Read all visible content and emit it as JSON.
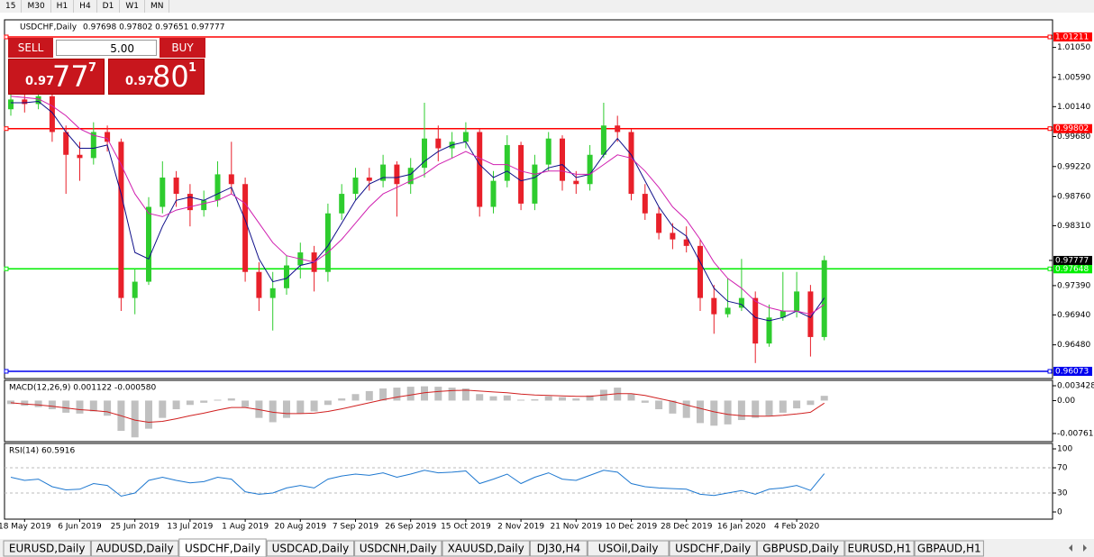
{
  "toolbar": [
    "15",
    "M30",
    "H1",
    "H4",
    "D1",
    "W1",
    "MN"
  ],
  "trade_panel": {
    "sell": "SELL",
    "buy": "BUY",
    "volume": "5.00",
    "sell_price": {
      "big": "0.97",
      "main": "77",
      "small": "7"
    },
    "buy_price": {
      "big": "0.97",
      "main": "80",
      "small": "1"
    }
  },
  "tabs": [
    "EURUSD,Daily",
    "AUDUSD,Daily",
    "USDCHF,Daily",
    "USDCAD,Daily",
    "USDCNH,Daily",
    "XAUUSD,Daily",
    "DJ30,H4",
    "USOil,Daily",
    "USDCHF,Daily",
    "GBPUSD,Daily",
    "EURUSD,H1",
    "GBPAUD,H1"
  ],
  "active_tab": 2,
  "chart_data": [
    {
      "type": "candlestick",
      "title": "USDCHF,Daily",
      "subtitle": "0.97698 0.97802 0.97651 0.97777",
      "categories": [
        null,
        "18 May 2019",
        null,
        null,
        null,
        "6 Jun 2019",
        null,
        null,
        null,
        "25 Jun 2019",
        null,
        null,
        null,
        "13 Jul 2019",
        null,
        null,
        null,
        "1 Aug 2019",
        null,
        null,
        null,
        "20 Aug 2019",
        null,
        null,
        null,
        "7 Sep 2019",
        null,
        null,
        null,
        "26 Sep 2019",
        null,
        null,
        null,
        "15 Oct 2019",
        null,
        null,
        null,
        "2 Nov 2019",
        null,
        null,
        null,
        "21 Nov 2019",
        null,
        null,
        null,
        "10 Dec 2019",
        null,
        null,
        null,
        "28 Dec 2019",
        null,
        null,
        null,
        "16 Jan 2020",
        null,
        null,
        null,
        "4 Feb 2020",
        null,
        null
      ],
      "open": [
        1.001,
        1.0025,
        1.0018,
        1.003,
        0.9975,
        0.994,
        0.9935,
        0.9975,
        0.996,
        0.972,
        0.9745,
        0.986,
        0.9905,
        0.988,
        0.9855,
        0.987,
        0.991,
        0.9895,
        0.976,
        0.972,
        0.9735,
        0.977,
        0.979,
        0.976,
        0.985,
        0.988,
        0.9905,
        0.99,
        0.9925,
        0.9895,
        0.992,
        0.9965,
        0.995,
        0.996,
        0.9975,
        0.986,
        0.99,
        0.9955,
        0.9865,
        0.9925,
        0.9965,
        0.99,
        0.9895,
        0.994,
        0.9985,
        0.9975,
        0.988,
        0.985,
        0.982,
        0.981,
        0.98,
        0.972,
        0.9695,
        0.9705,
        0.972,
        0.965,
        0.969,
        0.97,
        0.973,
        0.966
      ],
      "high": [
        1.004,
        1.0035,
        1.0045,
        1.0035,
        0.9985,
        0.996,
        0.999,
        0.9985,
        0.9965,
        0.9765,
        0.9875,
        0.993,
        0.9915,
        0.9895,
        0.9885,
        0.993,
        0.996,
        0.9905,
        0.9775,
        0.976,
        0.9785,
        0.9805,
        0.98,
        0.9865,
        0.9895,
        0.992,
        0.992,
        0.994,
        0.993,
        0.9935,
        1.002,
        0.9985,
        0.9975,
        0.999,
        0.998,
        0.9915,
        0.997,
        0.996,
        0.994,
        0.9975,
        0.997,
        0.9915,
        0.9955,
        1.002,
        1.0,
        0.998,
        0.9895,
        0.986,
        0.9835,
        0.983,
        0.981,
        0.974,
        0.975,
        0.978,
        0.973,
        0.971,
        0.976,
        0.976,
        0.974,
        0.9785
      ],
      "low": [
        1.0,
        1.0005,
        1.001,
        0.996,
        0.988,
        0.99,
        0.9925,
        0.9945,
        0.97,
        0.9695,
        0.974,
        0.985,
        0.986,
        0.983,
        0.9845,
        0.986,
        0.988,
        0.9745,
        0.97,
        0.967,
        0.9725,
        0.975,
        0.973,
        0.9745,
        0.984,
        0.987,
        0.9885,
        0.989,
        0.9845,
        0.988,
        0.9905,
        0.993,
        0.9935,
        0.995,
        0.9845,
        0.985,
        0.989,
        0.9855,
        0.9855,
        0.9915,
        0.9885,
        0.988,
        0.9885,
        0.9935,
        0.996,
        0.987,
        0.984,
        0.981,
        0.9795,
        0.979,
        0.97,
        0.9665,
        0.969,
        0.97,
        0.962,
        0.9645,
        0.9685,
        0.969,
        0.963,
        0.9655
      ],
      "close": [
        1.0025,
        1.0018,
        1.003,
        0.9975,
        0.994,
        0.9935,
        0.9975,
        0.996,
        0.972,
        0.9745,
        0.986,
        0.9905,
        0.988,
        0.9855,
        0.987,
        0.991,
        0.9895,
        0.976,
        0.972,
        0.9735,
        0.977,
        0.979,
        0.976,
        0.985,
        0.988,
        0.9905,
        0.99,
        0.9925,
        0.9895,
        0.992,
        0.9965,
        0.995,
        0.996,
        0.9975,
        0.986,
        0.99,
        0.9955,
        0.9865,
        0.9925,
        0.9965,
        0.99,
        0.9895,
        0.994,
        0.9985,
        0.9975,
        0.988,
        0.985,
        0.982,
        0.981,
        0.98,
        0.972,
        0.9695,
        0.9705,
        0.972,
        0.965,
        0.969,
        0.97,
        0.973,
        0.966,
        0.9778
      ],
      "up_color": "#2ecc2e",
      "down_color": "#e8202a",
      "series": [
        {
          "color": "#10108a",
          "values": [
            1.002,
            1.002,
            1.0022,
            1.0005,
            0.9975,
            0.995,
            0.995,
            0.9955,
            0.988,
            0.979,
            0.978,
            0.983,
            0.987,
            0.9875,
            0.987,
            0.988,
            0.989,
            0.984,
            0.978,
            0.9745,
            0.975,
            0.977,
            0.9775,
            0.98,
            0.9835,
            0.987,
            0.9895,
            0.9905,
            0.9905,
            0.991,
            0.993,
            0.9945,
            0.9955,
            0.996,
            0.9925,
            0.9905,
            0.9915,
            0.99,
            0.9905,
            0.992,
            0.9925,
            0.9905,
            0.991,
            0.994,
            0.9965,
            0.994,
            0.99,
            0.986,
            0.983,
            0.9815,
            0.9775,
            0.9735,
            0.9715,
            0.971,
            0.969,
            0.9685,
            0.969,
            0.97,
            0.969,
            0.972
          ]
        },
        {
          "color": "#d020b0",
          "values": [
            1.003,
            1.0028,
            1.0026,
            1.0015,
            1.0,
            0.998,
            0.997,
            0.9965,
            0.9925,
            0.988,
            0.985,
            0.9845,
            0.9855,
            0.986,
            0.9865,
            0.987,
            0.988,
            0.9865,
            0.9835,
            0.9805,
            0.9785,
            0.978,
            0.9775,
            0.979,
            0.981,
            0.9835,
            0.986,
            0.988,
            0.989,
            0.99,
            0.991,
            0.9925,
            0.9935,
            0.9945,
            0.9935,
            0.9925,
            0.9925,
            0.9915,
            0.991,
            0.9915,
            0.9915,
            0.991,
            0.991,
            0.9925,
            0.994,
            0.9935,
            0.9915,
            0.989,
            0.986,
            0.984,
            0.981,
            0.9775,
            0.975,
            0.9735,
            0.9715,
            0.9705,
            0.97,
            0.97,
            0.9695,
            0.971
          ]
        }
      ],
      "levels": [
        {
          "value": 1.01211,
          "color": "#ff0000"
        },
        {
          "value": 0.99802,
          "color": "#ff0000"
        },
        {
          "value": 0.97648,
          "color": "#00ee00"
        },
        {
          "value": 0.96073,
          "color": "#0000ee"
        }
      ],
      "last_price": 0.97777,
      "ylim": [
        0.95962,
        1.01474
      ],
      "yticks": [
        {
          "value": 1.0105,
          "label": "1.01050"
        },
        {
          "value": 1.0059,
          "label": "1.00590"
        },
        {
          "value": 1.0014,
          "label": "1.00140"
        },
        {
          "value": 0.9968,
          "label": "0.99680"
        },
        {
          "value": 0.9922,
          "label": "0.99220"
        },
        {
          "value": 0.9876,
          "label": "0.98760"
        },
        {
          "value": 0.9831,
          "label": "0.98310"
        },
        {
          "value": 0.9739,
          "label": "0.97390"
        },
        {
          "value": 0.9694,
          "label": "0.96940"
        },
        {
          "value": 0.9648,
          "label": "0.96480"
        }
      ]
    },
    {
      "type": "macd",
      "title": "MACD(12,26,9) 0.001122 -0.000580",
      "series": [
        {
          "color": "#c0c0c0",
          "values": [
            -0.0008,
            -0.0012,
            -0.0015,
            -0.002,
            -0.0028,
            -0.003,
            -0.0025,
            -0.0035,
            -0.007,
            -0.0085,
            -0.0065,
            -0.004,
            -0.002,
            -0.001,
            -0.0005,
            0.0002,
            0.0005,
            -0.0015,
            -0.004,
            -0.005,
            -0.004,
            -0.003,
            -0.0025,
            -0.001,
            0.0005,
            0.0015,
            0.0022,
            0.0028,
            0.003,
            0.0032,
            0.0033,
            0.0032,
            0.003,
            0.0028,
            0.0015,
            0.001,
            0.0012,
            0.0002,
            0.0003,
            0.001,
            0.0008,
            0.0005,
            0.0012,
            0.0025,
            0.003,
            0.0015,
            -0.0005,
            -0.002,
            -0.003,
            -0.004,
            -0.0052,
            -0.0058,
            -0.0055,
            -0.0045,
            -0.004,
            -0.0035,
            -0.0028,
            -0.0018,
            -0.001,
            0.0011
          ]
        },
        {
          "color": "#d02020",
          "values": [
            -0.0005,
            -0.0008,
            -0.001,
            -0.0013,
            -0.0017,
            -0.0021,
            -0.0023,
            -0.0026,
            -0.0035,
            -0.0045,
            -0.005,
            -0.0048,
            -0.0042,
            -0.0035,
            -0.0029,
            -0.0022,
            -0.0016,
            -0.0016,
            -0.0021,
            -0.0027,
            -0.003,
            -0.003,
            -0.0029,
            -0.0025,
            -0.0019,
            -0.0012,
            -0.0005,
            0.0002,
            0.0008,
            0.0013,
            0.0018,
            0.0021,
            0.0023,
            0.0024,
            0.0022,
            0.002,
            0.0018,
            0.0015,
            0.0013,
            0.0012,
            0.0011,
            0.001,
            0.001,
            0.0013,
            0.0016,
            0.0016,
            0.0012,
            0.0005,
            -0.0002,
            -0.001,
            -0.0018,
            -0.0026,
            -0.0032,
            -0.0035,
            -0.0036,
            -0.0036,
            -0.0034,
            -0.0031,
            -0.0027,
            -0.0006
          ]
        }
      ],
      "ylim": [
        -0.00949,
        0.00468
      ],
      "yticks": [
        0.003428,
        {
          "value": 0,
          "label": "0.00"
        },
        -0.007615
      ]
    },
    {
      "type": "line",
      "title": "RSI(14) 60.5916",
      "series": [
        {
          "color": "#1e78d0",
          "values": [
            55,
            50,
            52,
            40,
            35,
            36,
            45,
            42,
            25,
            30,
            50,
            55,
            50,
            46,
            48,
            55,
            52,
            32,
            28,
            30,
            38,
            42,
            38,
            52,
            57,
            60,
            58,
            62,
            55,
            60,
            66,
            62,
            63,
            65,
            45,
            52,
            60,
            45,
            55,
            62,
            52,
            50,
            58,
            66,
            63,
            45,
            40,
            38,
            37,
            36,
            28,
            26,
            30,
            34,
            28,
            36,
            38,
            42,
            34,
            60.6
          ]
        }
      ],
      "levels": [
        70,
        30
      ],
      "ylim": [
        -11.4,
        108.6
      ],
      "yticks": [
        100,
        70,
        30,
        0
      ]
    }
  ]
}
